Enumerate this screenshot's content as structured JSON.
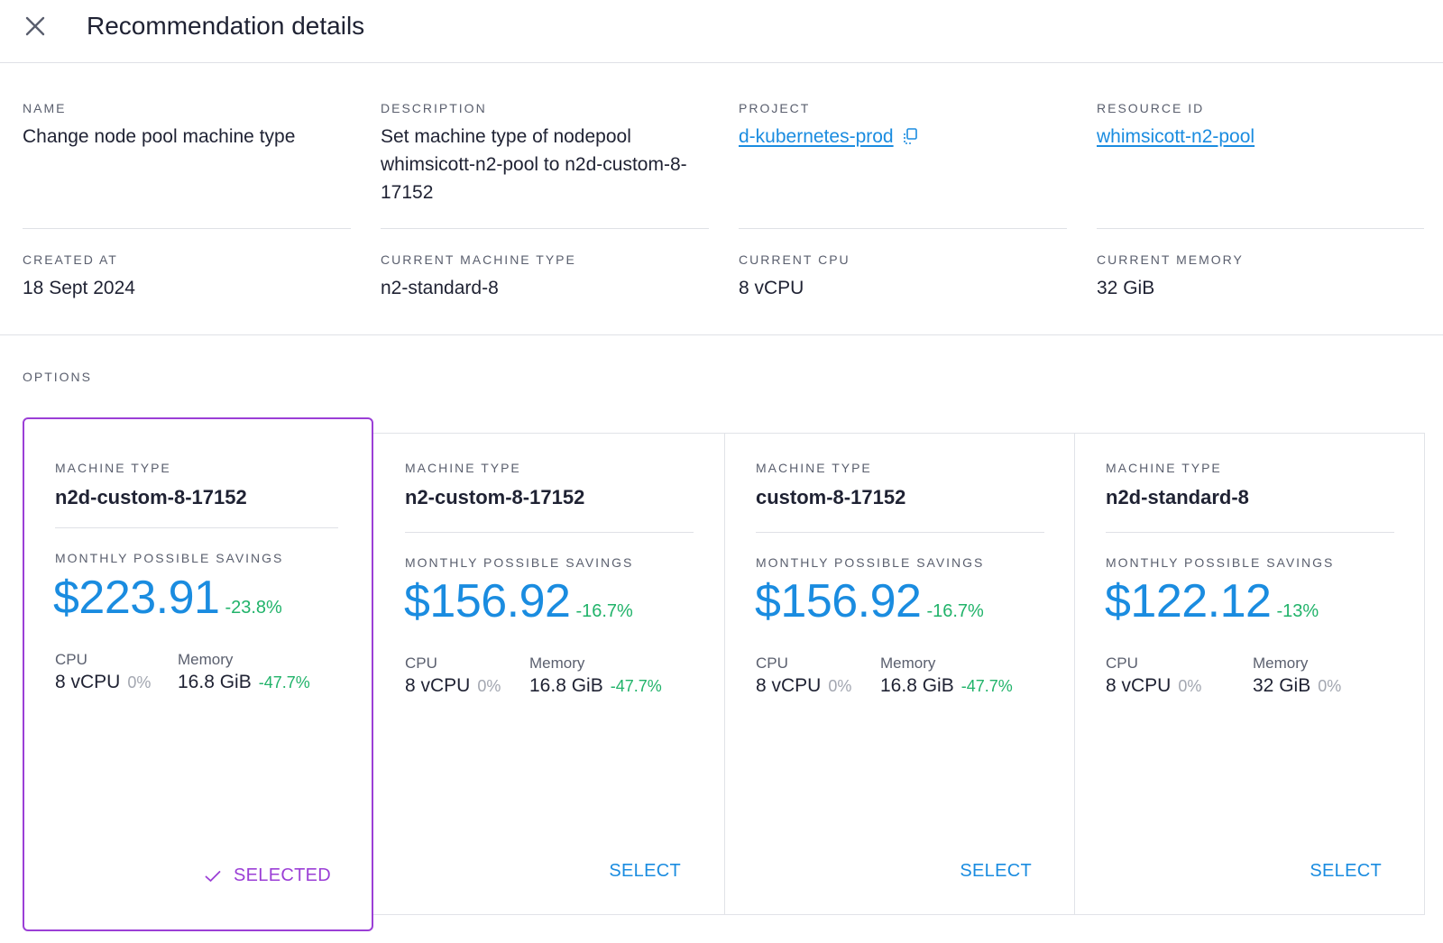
{
  "header": {
    "title": "Recommendation details"
  },
  "details": {
    "name": {
      "label": "NAME",
      "value": "Change node pool machine type"
    },
    "description": {
      "label": "DESCRIPTION",
      "value": "Set machine type of nodepool whimsicott-n2-pool to n2d-custom-8-17152"
    },
    "project": {
      "label": "PROJECT",
      "value": "d-kubernetes-prod"
    },
    "resource_id": {
      "label": "RESOURCE ID",
      "value": "whimsicott-n2-pool"
    },
    "created_at": {
      "label": "CREATED AT",
      "value": "18 Sept 2024"
    },
    "current_machine_type": {
      "label": "CURRENT MACHINE TYPE",
      "value": "n2-standard-8"
    },
    "current_cpu": {
      "label": "CURRENT CPU",
      "value": "8 vCPU"
    },
    "current_memory": {
      "label": "CURRENT MEMORY",
      "value": "32 GiB"
    }
  },
  "options": {
    "label": "OPTIONS",
    "cards": [
      {
        "machine_type_label": "MACHINE TYPE",
        "machine_type": "n2d-custom-8-17152",
        "savings_label": "MONTHLY POSSIBLE SAVINGS",
        "savings": "$223.91",
        "savings_pct": "-23.8%",
        "cpu_label": "CPU",
        "cpu": "8 vCPU",
        "cpu_pct": "0%",
        "memory_label": "Memory",
        "memory": "16.8 GiB",
        "memory_pct": "-47.7%",
        "action": "SELECTED"
      },
      {
        "machine_type_label": "MACHINE TYPE",
        "machine_type": "n2-custom-8-17152",
        "savings_label": "MONTHLY POSSIBLE SAVINGS",
        "savings": "$156.92",
        "savings_pct": "-16.7%",
        "cpu_label": "CPU",
        "cpu": "8 vCPU",
        "cpu_pct": "0%",
        "memory_label": "Memory",
        "memory": "16.8 GiB",
        "memory_pct": "-47.7%",
        "action": "SELECT"
      },
      {
        "machine_type_label": "MACHINE TYPE",
        "machine_type": "custom-8-17152",
        "savings_label": "MONTHLY POSSIBLE SAVINGS",
        "savings": "$156.92",
        "savings_pct": "-16.7%",
        "cpu_label": "CPU",
        "cpu": "8 vCPU",
        "cpu_pct": "0%",
        "memory_label": "Memory",
        "memory": "16.8 GiB",
        "memory_pct": "-47.7%",
        "action": "SELECT"
      },
      {
        "machine_type_label": "MACHINE TYPE",
        "machine_type": "n2d-standard-8",
        "savings_label": "MONTHLY POSSIBLE SAVINGS",
        "savings": "$122.12",
        "savings_pct": "-13%",
        "cpu_label": "CPU",
        "cpu": "8 vCPU",
        "cpu_pct": "0%",
        "memory_label": "Memory",
        "memory": "32 GiB",
        "memory_pct": "0%",
        "action": "SELECT"
      }
    ]
  },
  "colors": {
    "accent_blue": "#1a8ce0",
    "selected_purple": "#9b3fd6",
    "savings_green": "#21b36a",
    "neutral_gray": "#a2a6b0"
  }
}
